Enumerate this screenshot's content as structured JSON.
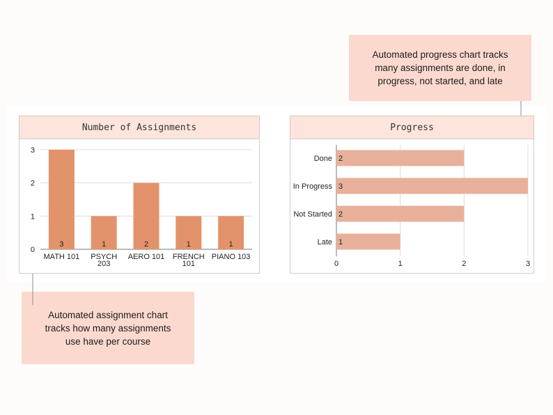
{
  "callouts": {
    "top_right": "Automated progress chart tracks\nmany assignments are done, in\nprogress, not started, and late",
    "bottom_left": "Automated assignment chart\ntracks how many assignments\nuse have per course"
  },
  "colors": {
    "assignment_bar": "#e3936b",
    "progress_bar": "#e8b09b",
    "callout_bg": "#fcd9cf",
    "header_bg": "#fde5dd"
  },
  "chart_data": [
    {
      "type": "bar",
      "title": "Number of Assignments",
      "categories": [
        [
          "MATH 101"
        ],
        [
          "PSYCH",
          "203"
        ],
        [
          "AERO 101"
        ],
        [
          "FRENCH",
          "101"
        ],
        [
          "PIANO 103"
        ]
      ],
      "values": [
        3,
        1,
        2,
        1,
        1
      ],
      "data_labels": [
        "3",
        "1",
        "2",
        "1",
        "1"
      ],
      "ylim": [
        0,
        3
      ],
      "yticks": [
        "0",
        "1",
        "2",
        "3"
      ],
      "grid": true
    },
    {
      "type": "bar",
      "orientation": "horizontal",
      "title": "Progress",
      "categories": [
        "Done",
        "In Progress",
        "Not Started",
        "Late"
      ],
      "values": [
        2,
        3,
        2,
        1
      ],
      "data_labels": [
        "2",
        "3",
        "2",
        "1"
      ],
      "xlim": [
        0,
        3
      ],
      "xticks": [
        "0",
        "1",
        "2",
        "3"
      ],
      "grid": true
    }
  ]
}
